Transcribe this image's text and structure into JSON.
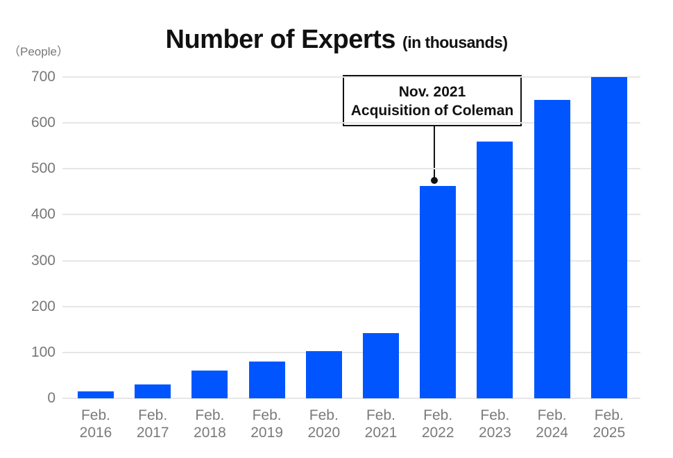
{
  "title": "Number of Experts",
  "subtitle": "(in thousands)",
  "unit_label": "（People）",
  "colors": {
    "bar": "#0055ff",
    "grid": "#e6e6e6",
    "axis_text": "#777777"
  },
  "annotation": {
    "line1": "Nov. 2021",
    "line2": "Acquisition of Coleman",
    "target_category": "Feb. 2022"
  },
  "y_ticks": [
    "700",
    "600",
    "500",
    "400",
    "300",
    "200",
    "100",
    "0"
  ],
  "x_labels": [
    {
      "line1": "Feb.",
      "line2": "2016"
    },
    {
      "line1": "Feb.",
      "line2": "2017"
    },
    {
      "line1": "Feb.",
      "line2": "2018"
    },
    {
      "line1": "Feb.",
      "line2": "2019"
    },
    {
      "line1": "Feb.",
      "line2": "2020"
    },
    {
      "line1": "Feb.",
      "line2": "2021"
    },
    {
      "line1": "Feb.",
      "line2": "2022"
    },
    {
      "line1": "Feb.",
      "line2": "2023"
    },
    {
      "line1": "Feb.",
      "line2": "2024"
    },
    {
      "line1": "Feb.",
      "line2": "2025"
    }
  ],
  "chart_data": {
    "type": "bar",
    "title": "Number of Experts (in thousands)",
    "xlabel": "",
    "ylabel": "(People)",
    "categories": [
      "Feb. 2016",
      "Feb. 2017",
      "Feb. 2018",
      "Feb. 2019",
      "Feb. 2020",
      "Feb. 2021",
      "Feb. 2022",
      "Feb. 2023",
      "Feb. 2024",
      "Feb. 2025"
    ],
    "values": [
      15,
      30,
      60,
      80,
      103,
      142,
      463,
      560,
      650,
      700
    ],
    "ylim": [
      0,
      700
    ],
    "yticks": [
      0,
      100,
      200,
      300,
      400,
      500,
      600,
      700
    ],
    "grid": true,
    "legend": null,
    "annotations": [
      {
        "text": "Nov. 2021 Acquisition of Coleman",
        "points_to": "Feb. 2022"
      }
    ]
  }
}
